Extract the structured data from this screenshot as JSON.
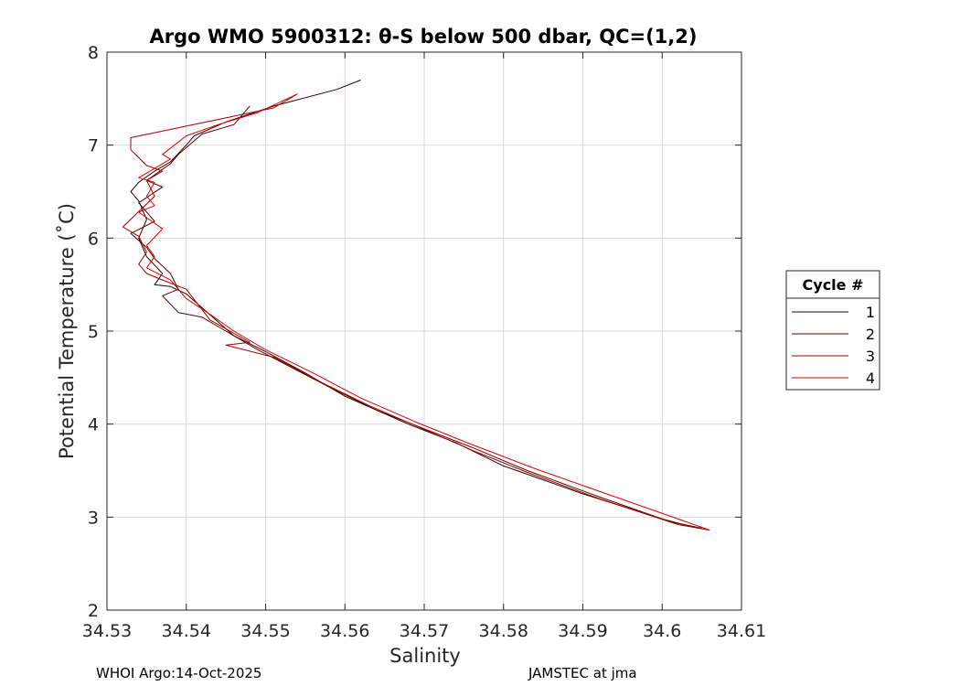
{
  "chart_data": {
    "type": "line",
    "title": "Argo WMO 5900312: θ-S below 500 dbar,  QC=(1,2)",
    "xlabel": "Salinity",
    "ylabel": "Potential Temperature (˚C)",
    "xlim": [
      34.53,
      34.61
    ],
    "ylim": [
      2,
      8
    ],
    "xticks": [
      "34.53",
      "34.54",
      "34.55",
      "34.56",
      "34.57",
      "34.58",
      "34.59",
      "34.6",
      "34.61"
    ],
    "yticks": [
      "2",
      "3",
      "4",
      "5",
      "6",
      "7",
      "8"
    ],
    "grid": true,
    "legend": {
      "title": "Cycle #",
      "placement": "right"
    },
    "series": [
      {
        "name": "1",
        "color": "#2b0000",
        "points": [
          [
            34.562,
            7.7
          ],
          [
            34.559,
            7.6
          ],
          [
            34.551,
            7.42
          ],
          [
            34.545,
            7.25
          ],
          [
            34.541,
            7.1
          ],
          [
            34.54,
            7.0
          ],
          [
            34.538,
            6.82
          ],
          [
            34.536,
            6.72
          ],
          [
            34.534,
            6.6
          ],
          [
            34.533,
            6.5
          ],
          [
            34.534,
            6.4
          ],
          [
            34.535,
            6.2
          ],
          [
            34.534,
            6.0
          ],
          [
            34.535,
            5.8
          ],
          [
            34.537,
            5.62
          ],
          [
            34.536,
            5.5
          ],
          [
            34.538,
            5.48
          ],
          [
            34.54,
            5.4
          ],
          [
            34.542,
            5.25
          ],
          [
            34.544,
            5.1
          ],
          [
            34.546,
            4.95
          ],
          [
            34.55,
            4.78
          ],
          [
            34.555,
            4.55
          ],
          [
            34.56,
            4.3
          ],
          [
            34.568,
            4.0
          ],
          [
            34.574,
            3.8
          ],
          [
            34.58,
            3.55
          ],
          [
            34.59,
            3.25
          ],
          [
            34.6,
            2.98
          ],
          [
            34.604,
            2.89
          ]
        ]
      },
      {
        "name": "2",
        "color": "#5e0000",
        "points": [
          [
            34.548,
            7.42
          ],
          [
            34.546,
            7.22
          ],
          [
            34.542,
            7.12
          ],
          [
            34.539,
            6.9
          ],
          [
            34.538,
            6.8
          ],
          [
            34.535,
            6.62
          ],
          [
            34.537,
            6.55
          ],
          [
            34.534,
            6.38
          ],
          [
            34.536,
            6.18
          ],
          [
            34.533,
            6.05
          ],
          [
            34.535,
            5.9
          ],
          [
            34.536,
            5.78
          ],
          [
            34.538,
            5.62
          ],
          [
            34.539,
            5.45
          ],
          [
            34.537,
            5.38
          ],
          [
            34.539,
            5.2
          ],
          [
            34.542,
            5.15
          ],
          [
            34.545,
            5.0
          ],
          [
            34.549,
            4.8
          ],
          [
            34.553,
            4.62
          ],
          [
            34.558,
            4.4
          ],
          [
            34.564,
            4.15
          ],
          [
            34.57,
            3.95
          ],
          [
            34.576,
            3.75
          ],
          [
            34.583,
            3.5
          ],
          [
            34.592,
            3.22
          ],
          [
            34.601,
            2.95
          ],
          [
            34.605,
            2.88
          ]
        ]
      },
      {
        "name": "3",
        "color": "#a00000",
        "points": [
          [
            34.554,
            7.55
          ],
          [
            34.551,
            7.4
          ],
          [
            34.533,
            7.08
          ],
          [
            34.533,
            6.95
          ],
          [
            34.535,
            6.78
          ],
          [
            34.537,
            6.72
          ],
          [
            34.535,
            6.62
          ],
          [
            34.536,
            6.45
          ],
          [
            34.532,
            6.12
          ],
          [
            34.534,
            6.02
          ],
          [
            34.535,
            5.85
          ],
          [
            34.534,
            5.72
          ],
          [
            34.535,
            5.62
          ],
          [
            34.537,
            5.55
          ],
          [
            34.54,
            5.45
          ],
          [
            34.543,
            5.12
          ],
          [
            34.548,
            4.88
          ],
          [
            34.545,
            4.85
          ],
          [
            34.551,
            4.72
          ],
          [
            34.557,
            4.45
          ],
          [
            34.563,
            4.2
          ],
          [
            34.569,
            3.98
          ],
          [
            34.576,
            3.72
          ],
          [
            34.583,
            3.48
          ],
          [
            34.592,
            3.2
          ],
          [
            34.602,
            2.92
          ],
          [
            34.606,
            2.86
          ]
        ]
      },
      {
        "name": "4",
        "color": "#e00000",
        "points": [
          [
            34.554,
            7.55
          ],
          [
            34.549,
            7.35
          ],
          [
            34.544,
            7.22
          ],
          [
            34.54,
            7.1
          ],
          [
            34.537,
            6.9
          ],
          [
            34.538,
            6.85
          ],
          [
            34.534,
            6.65
          ],
          [
            34.536,
            6.6
          ],
          [
            34.535,
            6.45
          ],
          [
            34.536,
            6.35
          ],
          [
            34.534,
            6.28
          ],
          [
            34.537,
            6.1
          ],
          [
            34.535,
            5.92
          ],
          [
            34.536,
            5.8
          ],
          [
            34.535,
            5.68
          ],
          [
            34.538,
            5.55
          ],
          [
            34.54,
            5.35
          ],
          [
            34.543,
            5.18
          ],
          [
            34.546,
            5.0
          ],
          [
            34.55,
            4.8
          ],
          [
            34.556,
            4.55
          ],
          [
            34.562,
            4.28
          ],
          [
            34.569,
            4.02
          ],
          [
            34.576,
            3.78
          ],
          [
            34.584,
            3.52
          ],
          [
            34.594,
            3.22
          ],
          [
            34.603,
            2.95
          ],
          [
            34.606,
            2.86
          ]
        ]
      }
    ]
  },
  "footer": {
    "left": "WHOI Argo:14-Oct-2025",
    "right": "JAMSTEC at jma"
  }
}
